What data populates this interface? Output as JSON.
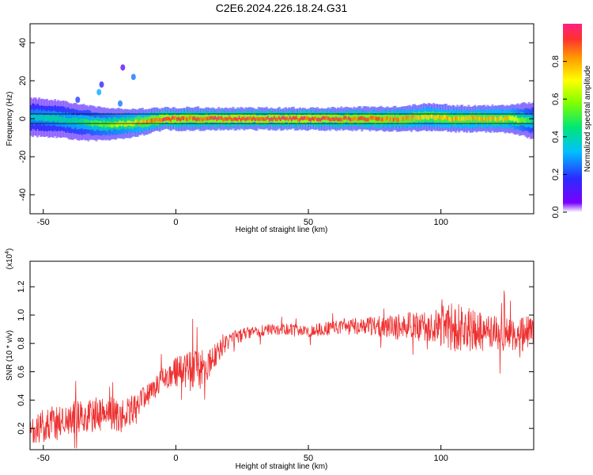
{
  "title": "C2E6.2024.226.18.24.G31",
  "chart_data": [
    {
      "type": "heatmap",
      "xlabel": "Height of straight line (km)",
      "ylabel": "Frequency (Hz)",
      "xlim": [
        -55,
        135
      ],
      "ylim": [
        -50,
        50
      ],
      "xticks": [
        "-50",
        "0",
        "50",
        "100"
      ],
      "yticks": [
        "40",
        "20",
        "0",
        "-20",
        "-40"
      ],
      "grid": false,
      "colorbar": {
        "label": "Normalized spectral amplitude",
        "range": [
          0,
          1
        ],
        "ticks": [
          "0.0",
          "0.2",
          "0.4",
          "0.6",
          "0.8"
        ],
        "colormap": [
          "#6a00ff",
          "#2b2bff",
          "#00c0ff",
          "#00e676",
          "#80ff00",
          "#ffff00",
          "#ff9900",
          "#ff3030",
          "#ff2080"
        ]
      },
      "ridge": {
        "x": [
          -55,
          -45,
          -35,
          -25,
          -15,
          -5,
          5,
          15,
          30,
          50,
          70,
          85,
          95,
          105,
          115,
          125,
          135
        ],
        "frequency": [
          1,
          0,
          -2,
          -3,
          -2,
          0,
          0,
          0,
          0,
          0,
          0,
          0,
          1,
          0,
          0,
          0,
          -1
        ],
        "amplitude": [
          0.35,
          0.4,
          0.45,
          0.6,
          0.75,
          0.95,
          0.9,
          0.95,
          0.95,
          0.95,
          0.9,
          0.85,
          0.75,
          0.8,
          0.8,
          0.75,
          0.4
        ]
      },
      "scatter_blobs": [
        {
          "x": -37,
          "frequency": 10,
          "amplitude": 0.15
        },
        {
          "x": -29,
          "frequency": 14,
          "amplitude": 0.25
        },
        {
          "x": -28,
          "frequency": 18,
          "amplitude": 0.1
        },
        {
          "x": -21,
          "frequency": 8,
          "amplitude": 0.2
        },
        {
          "x": -16,
          "frequency": 22,
          "amplitude": 0.2
        },
        {
          "x": -20,
          "frequency": 27,
          "amplitude": 0.05
        }
      ]
    },
    {
      "type": "line",
      "xlabel": "Height of straight line (km)",
      "ylabel": "SNR (10 * v/v)",
      "yunit": "(x10^4)",
      "xlim": [
        -55,
        135
      ],
      "ylim": [
        0.05,
        1.38
      ],
      "xticks": [
        "-50",
        "0",
        "50",
        "100"
      ],
      "yticks": [
        "0.2",
        "0.4",
        "0.6",
        "0.8",
        "1.0",
        "1.2"
      ],
      "grid": false,
      "series": [
        {
          "color": "#ee3030",
          "x": [
            -55,
            -50,
            -45,
            -40,
            -35,
            -30,
            -25,
            -20,
            -15,
            -10,
            -5,
            0,
            5,
            10,
            15,
            20,
            25,
            30,
            35,
            40,
            45,
            50,
            55,
            60,
            65,
            70,
            75,
            80,
            85,
            90,
            95,
            100,
            105,
            110,
            115,
            120,
            125,
            130,
            135
          ],
          "values": [
            0.15,
            0.22,
            0.25,
            0.27,
            0.28,
            0.3,
            0.3,
            0.28,
            0.35,
            0.45,
            0.55,
            0.6,
            0.6,
            0.62,
            0.72,
            0.82,
            0.86,
            0.88,
            0.9,
            0.9,
            0.9,
            0.88,
            0.9,
            0.91,
            0.92,
            0.92,
            0.92,
            0.92,
            0.92,
            0.92,
            0.93,
            0.92,
            0.92,
            0.9,
            0.88,
            0.88,
            0.86,
            0.86,
            0.88
          ],
          "noise": [
            0.1,
            0.12,
            0.14,
            0.12,
            0.12,
            0.12,
            0.12,
            0.12,
            0.1,
            0.08,
            0.08,
            0.1,
            0.15,
            0.14,
            0.08,
            0.06,
            0.05,
            0.04,
            0.04,
            0.04,
            0.04,
            0.04,
            0.05,
            0.05,
            0.06,
            0.06,
            0.07,
            0.08,
            0.1,
            0.1,
            0.12,
            0.14,
            0.18,
            0.16,
            0.14,
            0.12,
            0.12,
            0.12,
            0.12
          ]
        }
      ]
    }
  ]
}
